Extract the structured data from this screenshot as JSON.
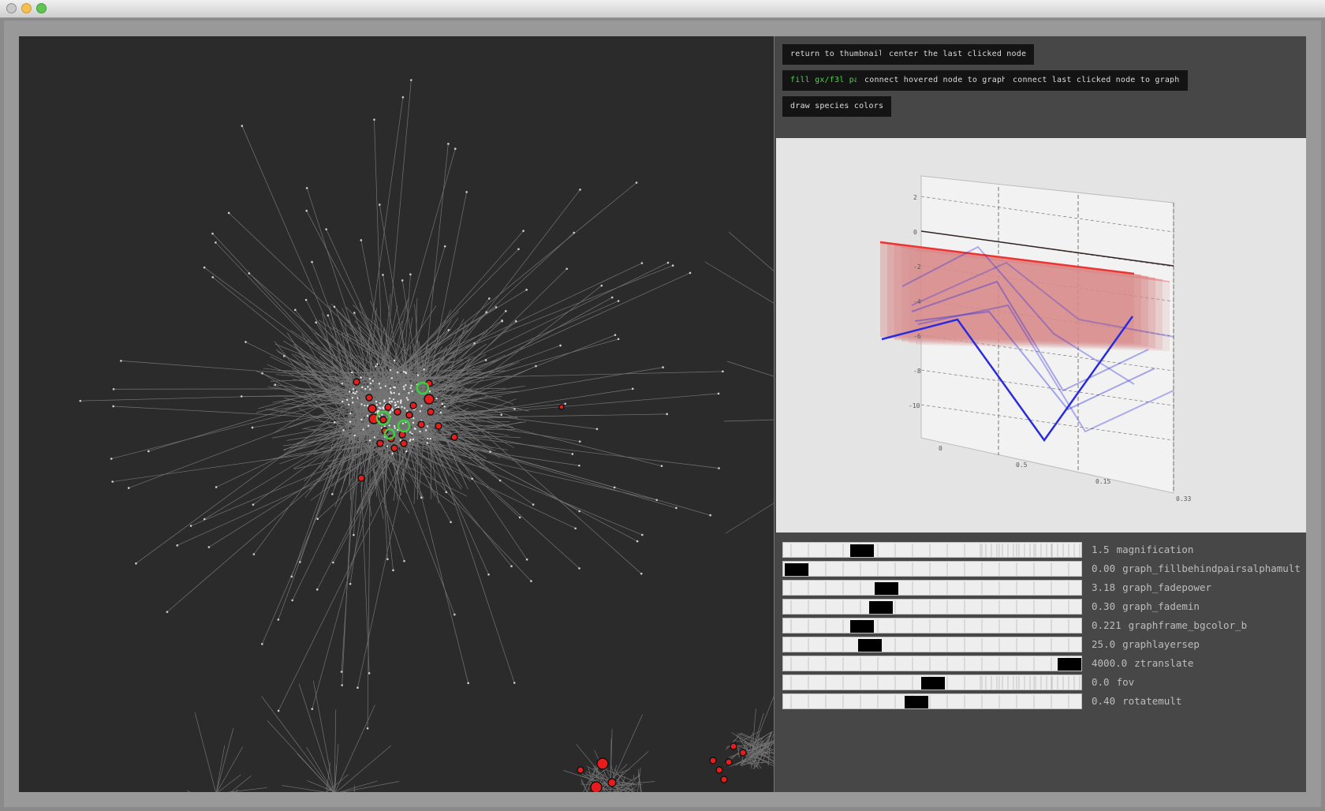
{
  "window": {
    "controls": [
      "close",
      "minimize",
      "maximize"
    ]
  },
  "toolbar": {
    "buttons": [
      {
        "label": "return to thumbnails",
        "active": false
      },
      {
        "label": "center the last clicked node",
        "active": false
      },
      {
        "label": "fill gx/f3l pairs",
        "active": true
      },
      {
        "label": "connect hovered node to graph",
        "active": false
      },
      {
        "label": "connect last clicked node to graph",
        "active": false
      },
      {
        "label": "draw species colors",
        "active": false
      }
    ]
  },
  "plot": {
    "y_ticks": [
      "2",
      "0",
      "-2",
      "-4",
      "-6",
      "-8",
      "-10"
    ],
    "x_ticks": [
      "0",
      "0.5",
      "0.15",
      "0.33"
    ]
  },
  "sliders": [
    {
      "value": "1.5",
      "name": "magnification",
      "position": 0.24
    },
    {
      "value": "0.00",
      "name": "graph_fillbehindpairsalphamult",
      "position": 0.0
    },
    {
      "value": "3.18",
      "name": "graph_fadepower",
      "position": 0.33
    },
    {
      "value": "0.30",
      "name": "graph_fademin",
      "position": 0.31
    },
    {
      "value": "0.221",
      "name": "graphframe_bgcolor_b",
      "position": 0.24
    },
    {
      "value": "25.0",
      "name": "graphlayersep",
      "position": 0.27
    },
    {
      "value": "4000.0",
      "name": "ztranslate",
      "position": 1.0
    },
    {
      "value": "0.0",
      "name": "fov",
      "position": 0.5
    },
    {
      "value": "0.40",
      "name": "rotatemult",
      "position": 0.44
    }
  ],
  "colors": {
    "graph_bg": "#2b2b2b",
    "edge": "#8c8c8c",
    "node_red": "#e81c1c",
    "node_green_ring": "#3ccf3c",
    "plot_red": "#ee3333",
    "plot_blue": "#2a2ae0"
  }
}
